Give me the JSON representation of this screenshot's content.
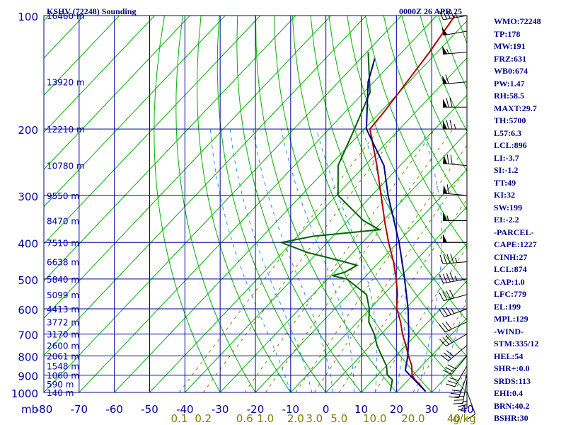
{
  "chart_data": {
    "type": "line",
    "title": "KSHV (72248) Sounding",
    "valid_time": "0000Z 26 APR 25",
    "pressure_unit_label": "mb",
    "mixing_ratio_unit_label": "g/kg",
    "pressure_ticks": [
      100,
      200,
      300,
      400,
      500,
      600,
      700,
      800,
      900,
      1000
    ],
    "temperature_ticks": [
      -80,
      -70,
      -60,
      -50,
      -40,
      -30,
      -20,
      -10,
      0,
      10,
      20,
      30,
      40
    ],
    "mixing_ratio_ticks": [
      "0.1",
      "0.2",
      "0.6",
      "1.0",
      "2.0",
      "3.0",
      "5.0",
      "10.0",
      "20.0",
      "40"
    ],
    "height_labels": [
      {
        "p": 100,
        "label": "16460 m"
      },
      {
        "p": 150,
        "label": "13920 m"
      },
      {
        "p": 200,
        "label": "12210 m"
      },
      {
        "p": 250,
        "label": "10780 m"
      },
      {
        "p": 300,
        "label": "9550 m"
      },
      {
        "p": 350,
        "label": "8470 m"
      },
      {
        "p": 400,
        "label": "7510 m"
      },
      {
        "p": 450,
        "label": "6638 m"
      },
      {
        "p": 500,
        "label": "5840 m"
      },
      {
        "p": 550,
        "label": "5099 m"
      },
      {
        "p": 600,
        "label": "4413 m"
      },
      {
        "p": 650,
        "label": "3772 m"
      },
      {
        "p": 700,
        "label": "3170 m"
      },
      {
        "p": 750,
        "label": "2600 m"
      },
      {
        "p": 800,
        "label": "2061 m"
      },
      {
        "p": 850,
        "label": "1548 m"
      },
      {
        "p": 900,
        "label": "1060 m"
      },
      {
        "p": 950,
        "label": "590 m"
      },
      {
        "p": 1000,
        "label": "140 m"
      }
    ],
    "xlim": [
      -80,
      40
    ],
    "ylim": [
      1000,
      100
    ],
    "y_scale": "log",
    "grid": true,
    "series": [
      {
        "name": "",
        "role": "temperature",
        "color": "#b00000",
        "points": [
          [
            994,
            28.0
          ],
          [
            950,
            24.2
          ],
          [
            925,
            21.8
          ],
          [
            900,
            19.8
          ],
          [
            850,
            17.2
          ],
          [
            800,
            13.6
          ],
          [
            750,
            10.0
          ],
          [
            700,
            6.0
          ],
          [
            650,
            2.2
          ],
          [
            600,
            -2.4
          ],
          [
            570,
            -4.6
          ],
          [
            550,
            -6.0
          ],
          [
            500,
            -10.6
          ],
          [
            450,
            -16.0
          ],
          [
            400,
            -22.6
          ],
          [
            350,
            -29.6
          ],
          [
            300,
            -37.4
          ],
          [
            250,
            -46.6
          ],
          [
            200,
            -58.4
          ],
          [
            180,
            -59.0
          ],
          [
            150,
            -60.6
          ],
          [
            125,
            -62.2
          ],
          [
            100,
            -64.8
          ]
        ]
      },
      {
        "name": "",
        "role": "dewpoint",
        "color": "#006400",
        "points": [
          [
            994,
            18.0
          ],
          [
            950,
            16.4
          ],
          [
            925,
            15.4
          ],
          [
            900,
            12.8
          ],
          [
            850,
            10.0
          ],
          [
            800,
            6.0
          ],
          [
            750,
            1.8
          ],
          [
            700,
            -2.0
          ],
          [
            650,
            -6.8
          ],
          [
            600,
            -10.2
          ],
          [
            550,
            -14.8
          ],
          [
            500,
            -24.6
          ],
          [
            490,
            -29.6
          ],
          [
            480,
            -27.0
          ],
          [
            460,
            -25.4
          ],
          [
            450,
            -30.0
          ],
          [
            425,
            -43.0
          ],
          [
            400,
            -53.0
          ],
          [
            385,
            -45.6
          ],
          [
            370,
            -28.6
          ],
          [
            350,
            -35.6
          ],
          [
            300,
            -49.6
          ],
          [
            250,
            -57.6
          ],
          [
            200,
            -62.8
          ],
          [
            160,
            -68.2
          ],
          [
            125,
            -79.6
          ]
        ]
      },
      {
        "name": "",
        "role": "parcel",
        "color": "#00008b",
        "points": [
          [
            994,
            28.0
          ],
          [
            874,
            16.6
          ],
          [
            800,
            13.4
          ],
          [
            700,
            7.8
          ],
          [
            600,
            0.8
          ],
          [
            500,
            -8.2
          ],
          [
            400,
            -19.6
          ],
          [
            300,
            -35.4
          ],
          [
            250,
            -44.6
          ],
          [
            200,
            -59.4
          ],
          [
            150,
            -71.6
          ],
          [
            130,
            -76.0
          ]
        ]
      }
    ],
    "wind_barbs": [
      {
        "p": 994,
        "dir": 160,
        "spd": 10
      },
      {
        "p": 950,
        "dir": 180,
        "spd": 25
      },
      {
        "p": 925,
        "dir": 190,
        "spd": 30
      },
      {
        "p": 900,
        "dir": 200,
        "spd": 30
      },
      {
        "p": 850,
        "dir": 210,
        "spd": 30
      },
      {
        "p": 800,
        "dir": 220,
        "spd": 30
      },
      {
        "p": 750,
        "dir": 230,
        "spd": 30
      },
      {
        "p": 700,
        "dir": 240,
        "spd": 30
      },
      {
        "p": 650,
        "dir": 245,
        "spd": 30
      },
      {
        "p": 600,
        "dir": 250,
        "spd": 35
      },
      {
        "p": 550,
        "dir": 255,
        "spd": 40
      },
      {
        "p": 500,
        "dir": 260,
        "spd": 45
      },
      {
        "p": 450,
        "dir": 265,
        "spd": 45
      },
      {
        "p": 400,
        "dir": 270,
        "spd": 50
      },
      {
        "p": 350,
        "dir": 270,
        "spd": 55
      },
      {
        "p": 300,
        "dir": 275,
        "spd": 60
      },
      {
        "p": 250,
        "dir": 275,
        "spd": 70
      },
      {
        "p": 200,
        "dir": 270,
        "spd": 75
      },
      {
        "p": 175,
        "dir": 270,
        "spd": 70
      },
      {
        "p": 150,
        "dir": 265,
        "spd": 60
      },
      {
        "p": 125,
        "dir": 265,
        "spd": 55
      },
      {
        "p": 110,
        "dir": 260,
        "spd": 50
      },
      {
        "p": 100,
        "dir": 260,
        "spd": 45
      }
    ]
  },
  "indices": [
    "WMO:72248",
    "TP:178",
    "MW:191",
    "FRZ:631",
    "WB0:674",
    "PW:1.47",
    "RH:58.5",
    "MAXT:29.7",
    "TH:5700",
    "L57:6.3",
    "LCL:896",
    "LI:-3.7",
    "SI:-1.2",
    "TT:49",
    "KI:32",
    "SW:199",
    "EI:-2.2",
    "-PARCEL-",
    "CAPE:1227",
    "CINH:27",
    "LCL:874",
    "CAP:1.0",
    "LFC:779",
    "EL:199",
    "MPL:129",
    "-WIND-",
    "STM:335/12",
    "HEL:54",
    "SHR+:0.0",
    "SRDS:113",
    "EHI:0.4",
    "BRN:40.2",
    "BSHR:30"
  ],
  "colors": {
    "isobar": "#00009e",
    "isotherm_dry_adiabat": "#00b000",
    "moist_adiabat": "#1e90ff",
    "mixing_ratio": "#808000",
    "label_blue": "#00008b"
  }
}
